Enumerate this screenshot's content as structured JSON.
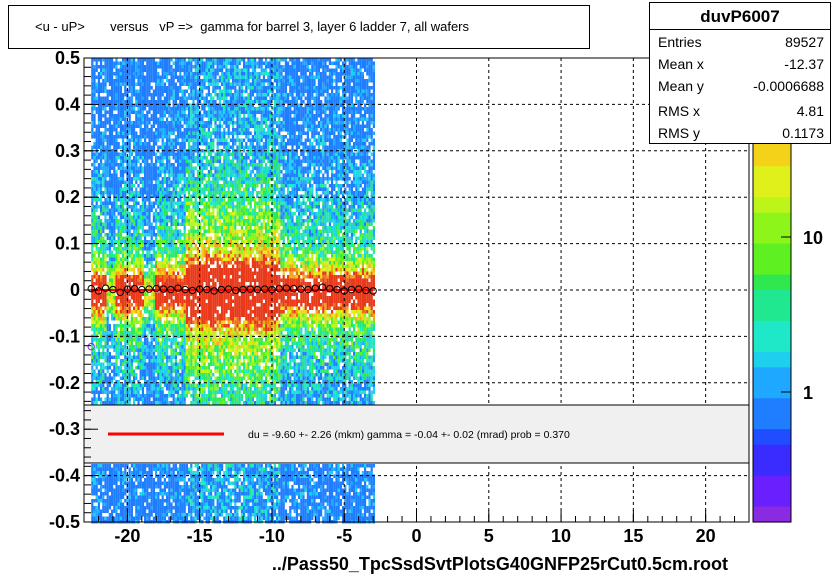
{
  "title": "<u - uP>       versus   vP =>  gamma for barrel 3, layer 6 ladder 7, all wafers",
  "stats": {
    "name": "duvP6007",
    "rows": [
      {
        "label": "Entries",
        "value": "89527"
      },
      {
        "label": "Mean x",
        "value": "-12.37"
      },
      {
        "label": "Mean y",
        "value": "-0.0006688"
      },
      {
        "label": "RMS x",
        "value": "4.81"
      },
      {
        "label": "RMS y",
        "value": "0.1173"
      }
    ]
  },
  "fit_text": "du =   -9.60 +-  2.26 (mkm) gamma =   -0.04 +-  0.02 (mrad) prob = 0.370",
  "x_title": "../Pass50_TpcSsdSvtPlotsG40GNFP25rCut0.5cm.root",
  "colorbar_labels": [
    "10",
    "1"
  ],
  "colorbar_exponent": "2",
  "colors": {
    "fit_line": "#ff0000",
    "legend_bg": "#f0f0f0",
    "grid": "#000000"
  },
  "chart_data": {
    "type": "heatmap",
    "xlim": [
      -23,
      23
    ],
    "ylim": [
      -0.5,
      0.5
    ],
    "x_ticks": [
      -20,
      -15,
      -10,
      -5,
      0,
      5,
      10,
      15,
      20
    ],
    "y_ticks": [
      -0.5,
      -0.4,
      -0.3,
      -0.2,
      -0.1,
      0,
      0.1,
      0.2,
      0.3,
      0.4,
      0.5
    ],
    "x_tick_labels": [
      "-20",
      "-15",
      "-10",
      "-5",
      "0",
      "5",
      "10",
      "15",
      "20"
    ],
    "y_tick_labels": [
      "-0.5",
      "-0.4",
      "-0.3",
      "-0.2",
      "-0.1",
      "0",
      "0.1",
      "0.2",
      "0.3",
      "0.4",
      "0.5"
    ],
    "grid": true,
    "log_z": true,
    "data_x_range": [
      -22.5,
      -3
    ],
    "profile": {
      "x": [
        -22.5,
        -22,
        -21.5,
        -21,
        -20.5,
        -20,
        -19.5,
        -19,
        -18.5,
        -18,
        -17.5,
        -17,
        -16.5,
        -16,
        -15.5,
        -15,
        -14.5,
        -14,
        -13.5,
        -13,
        -12.5,
        -12,
        -11.5,
        -11,
        -10.5,
        -10,
        -9.5,
        -9,
        -8.5,
        -8,
        -7.5,
        -7,
        -6.5,
        -6,
        -5.5,
        -5,
        -4.5,
        -4,
        -3.5,
        -3
      ],
      "y": [
        0.003,
        -0.002,
        0.004,
        0.001,
        -0.005,
        0.002,
        0.003,
        0.001,
        0.002,
        0.003,
        0.002,
        0.001,
        0.004,
        0.001,
        -0.001,
        0.002,
        0.001,
        -0.002,
        0.001,
        0.002,
        -0.001,
        0.001,
        0.002,
        0.001,
        0.002,
        0.001,
        0.003,
        0.004,
        0.003,
        0.002,
        0.001,
        0.004,
        0.006,
        0.003,
        0.001,
        -0.002,
        0.001,
        0.002,
        -0.001,
        -0.002
      ]
    },
    "outlier_points": [
      {
        "x": -22.5,
        "y": -0.122
      }
    ],
    "fit": {
      "du_mkm": -9.6,
      "du_err": 2.26,
      "gamma_mrad": -0.04,
      "gamma_err": 0.02,
      "prob": 0.37
    }
  }
}
